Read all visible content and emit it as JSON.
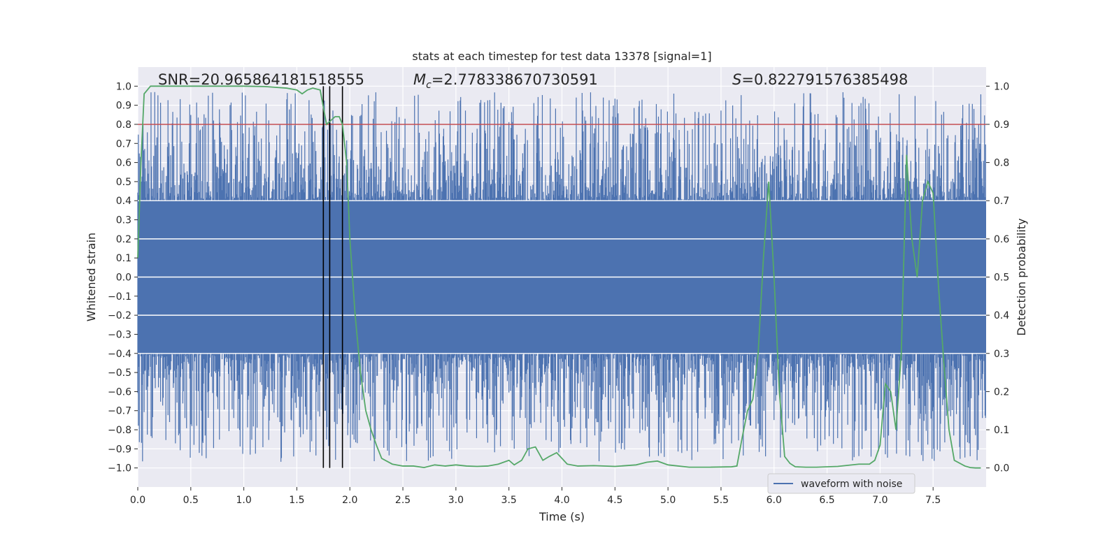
{
  "chart_data": {
    "type": "line",
    "title": "stats at each timestep for test data 13378 [signal=1]",
    "xlabel": "Time (s)",
    "ylabel": "Whitened strain",
    "y2label": "Detection probability",
    "xlim": [
      0.0,
      8.0
    ],
    "ylim": [
      -1.1,
      1.1
    ],
    "y2lim": [
      -0.05,
      1.05
    ],
    "x_ticks": [
      0.0,
      0.5,
      1.0,
      1.5,
      2.0,
      2.5,
      3.0,
      3.5,
      4.0,
      4.5,
      5.0,
      5.5,
      6.0,
      6.5,
      7.0,
      7.5
    ],
    "x_tick_labels": [
      "0.0",
      "0.5",
      "1.0",
      "1.5",
      "2.0",
      "2.5",
      "3.0",
      "3.5",
      "4.0",
      "4.5",
      "5.0",
      "5.5",
      "6.0",
      "6.5",
      "7.0",
      "7.5"
    ],
    "y_ticks": [
      1.0,
      0.9,
      0.8,
      0.7,
      0.6,
      0.5,
      0.4,
      0.3,
      0.2,
      0.1,
      0.0,
      -0.1,
      -0.2,
      -0.3,
      -0.4,
      -0.5,
      -0.6,
      -0.7,
      -0.8,
      -0.9,
      -1.0
    ],
    "y_tick_labels": [
      "1.0",
      "0.9",
      "0.8",
      "0.7",
      "0.6",
      "0.5",
      "0.4",
      "0.3",
      "0.2",
      "0.1",
      "0.0",
      "−0.1",
      "−0.2",
      "−0.3",
      "−0.4",
      "−0.5",
      "−0.6",
      "−0.7",
      "−0.8",
      "−0.9",
      "−1.0"
    ],
    "y2_ticks": [
      1.0,
      0.9,
      0.8,
      0.7,
      0.6,
      0.5,
      0.4,
      0.3,
      0.2,
      0.1,
      0.0
    ],
    "y2_tick_labels": [
      "1.0",
      "0.9",
      "0.8",
      "0.7",
      "0.6",
      "0.5",
      "0.4",
      "0.3",
      "0.2",
      "0.1",
      "0.0"
    ],
    "annotations": {
      "snr": "SNR=20.965864181518555",
      "mc_symbol": "M",
      "mc_sub": "c",
      "mc_value": "=2.778338670730591",
      "s_symbol": "S",
      "s_value": "=0.822791576385498"
    },
    "threshold": {
      "value": 0.8,
      "color": "#c44e52"
    },
    "vertical_lines": [
      1.75,
      1.81,
      1.93
    ],
    "legend": {
      "label": "waveform with noise",
      "placement": "lower-right"
    },
    "waveform": {
      "name": "waveform with noise",
      "color": "#4c72b0",
      "x_range": [
        0.0,
        8.0
      ],
      "envelope_points": 1600,
      "approx_band": [
        -0.4,
        0.4
      ],
      "peak_range": [
        -1.0,
        1.0
      ]
    },
    "probability_series": {
      "name": "detection probability",
      "color": "#55a868",
      "x": [
        0.0,
        0.03,
        0.06,
        0.12,
        0.2,
        0.3,
        0.5,
        0.8,
        1.0,
        1.2,
        1.4,
        1.5,
        1.55,
        1.6,
        1.65,
        1.72,
        1.78,
        1.82,
        1.86,
        1.9,
        1.93,
        1.97,
        2.0,
        2.05,
        2.1,
        2.15,
        2.2,
        2.25,
        2.3,
        2.4,
        2.5,
        2.6,
        2.7,
        2.8,
        2.9,
        3.0,
        3.1,
        3.2,
        3.3,
        3.4,
        3.5,
        3.55,
        3.62,
        3.68,
        3.75,
        3.82,
        3.88,
        3.95,
        4.0,
        4.05,
        4.15,
        4.3,
        4.5,
        4.7,
        4.8,
        4.9,
        5.0,
        5.2,
        5.4,
        5.6,
        5.65,
        5.7,
        5.75,
        5.8,
        5.85,
        5.9,
        5.95,
        6.0,
        6.05,
        6.1,
        6.15,
        6.2,
        6.3,
        6.4,
        6.6,
        6.8,
        6.9,
        6.95,
        7.0,
        7.05,
        7.1,
        7.15,
        7.2,
        7.25,
        7.3,
        7.35,
        7.4,
        7.45,
        7.5,
        7.55,
        7.6,
        7.65,
        7.7,
        7.8,
        7.85,
        7.9,
        7.95
      ],
      "y": [
        0.55,
        0.8,
        0.98,
        1.0,
        1.0,
        1.0,
        1.0,
        1.0,
        1.0,
        0.999,
        0.995,
        0.99,
        0.98,
        0.99,
        0.995,
        0.99,
        0.9,
        0.91,
        0.92,
        0.92,
        0.9,
        0.8,
        0.6,
        0.4,
        0.25,
        0.15,
        0.1,
        0.06,
        0.025,
        0.01,
        0.005,
        0.005,
        0.001,
        0.008,
        0.005,
        0.008,
        0.005,
        0.004,
        0.005,
        0.01,
        0.02,
        0.008,
        0.02,
        0.05,
        0.055,
        0.02,
        0.03,
        0.04,
        0.025,
        0.01,
        0.005,
        0.006,
        0.004,
        0.008,
        0.015,
        0.018,
        0.008,
        0.002,
        0.002,
        0.003,
        0.005,
        0.08,
        0.15,
        0.18,
        0.3,
        0.55,
        0.75,
        0.5,
        0.2,
        0.03,
        0.012,
        0.003,
        0.002,
        0.002,
        0.004,
        0.01,
        0.01,
        0.02,
        0.06,
        0.22,
        0.2,
        0.1,
        0.3,
        0.82,
        0.6,
        0.5,
        0.7,
        0.75,
        0.72,
        0.48,
        0.28,
        0.1,
        0.02,
        0.005,
        0.001,
        0.0,
        0.0
      ]
    }
  }
}
